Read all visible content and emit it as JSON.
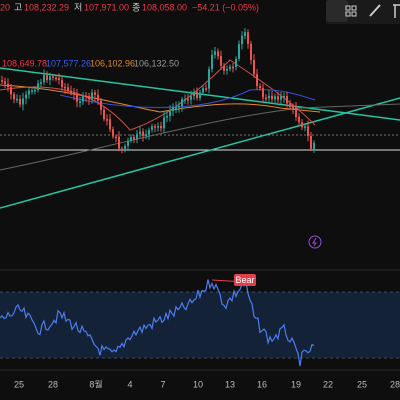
{
  "legend": {
    "open_partial": "20",
    "high_label": "고",
    "high": "108,232.29",
    "low_label": "저",
    "low": "107,971.00",
    "close_label": "종",
    "close": "108,058.00",
    "change": "−54.21 (−0.05%)"
  },
  "indicators": [
    "108,649.78",
    "107,577.26",
    "106,102.96",
    "106,132.50"
  ],
  "rsi": {
    "signal": "Bear"
  },
  "x_axis": [
    "25",
    "28",
    "8월",
    "4",
    "7",
    "10",
    "13",
    "16",
    "19",
    "22",
    "25",
    "28"
  ]
}
